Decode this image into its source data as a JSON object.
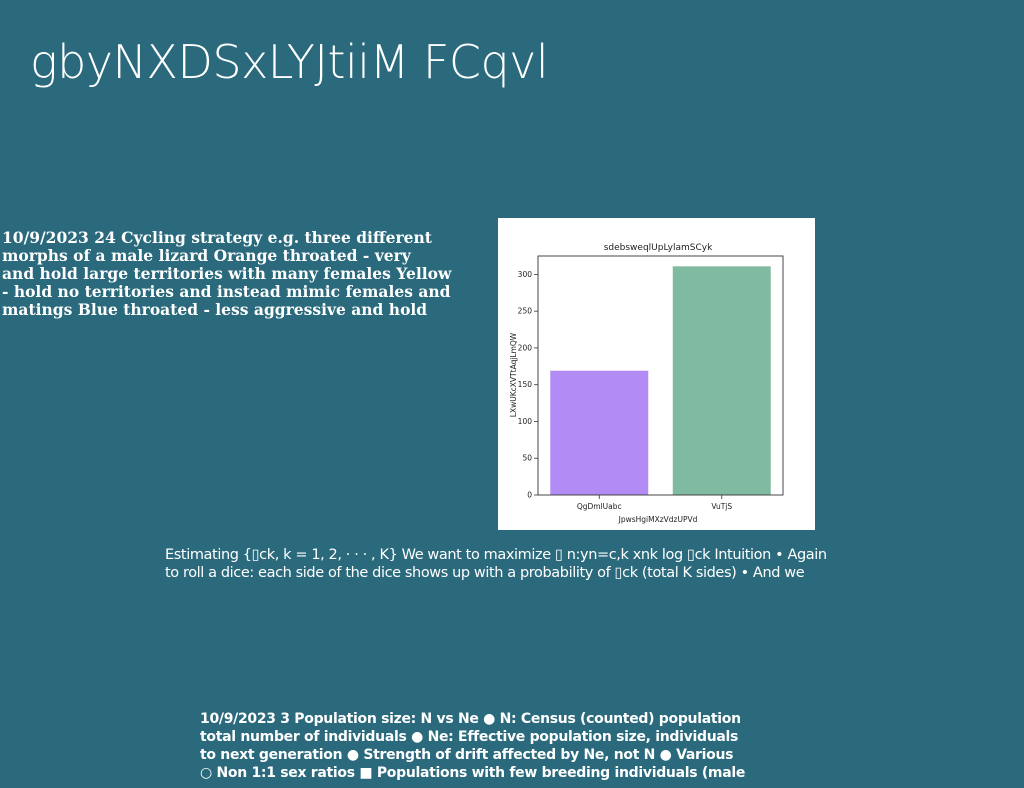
{
  "slide": {
    "title": "gbyNXDSxLYJtiiM FCqvl"
  },
  "left_text": {
    "lines": [
      "10/9/2023 24 Cycling strategy e.g. three different",
      "morphs of a male lizard Orange throated - very",
      "and hold large territories with many females Yellow",
      "- hold no territories and instead mimic females and",
      "matings Blue throated - less aggressive and hold"
    ]
  },
  "middle_text": {
    "lines": [
      "Estimating {▯ck, k = 1, 2, · · · , K} We want to maximize ▯ n:yn=c,k xnk log ▯ck Intuition • Again",
      "to roll a dice: each side of the dice shows up with a probability of ▯ck (total K sides) • And we"
    ]
  },
  "bottom_text": {
    "lines": [
      "10/9/2023 3 Population size: N vs Ne ● N: Census (counted) population",
      "total number of individuals ● Ne: Effective population size, individuals",
      "to next generation ● Strength of drift affected by Ne, not N ● Various",
      "○ Non 1:1 sex ratios ■ Populations with few breeding individuals (male"
    ]
  },
  "chart_data": {
    "type": "bar",
    "title": "sdebsweqlUpLylamSCyk",
    "xlabel": "JpwsHgiMXzVdzUPVd",
    "ylabel": "LXwUKcXVTtAqjLmQW",
    "categories": [
      "QgDmlUabc",
      "VuTjS"
    ],
    "values": [
      169,
      311
    ],
    "colors": [
      "#b28cf4",
      "#80bba1"
    ],
    "ylim": [
      0,
      325
    ],
    "yticks": [
      0,
      50,
      100,
      150,
      200,
      250,
      300
    ],
    "grid": false
  }
}
